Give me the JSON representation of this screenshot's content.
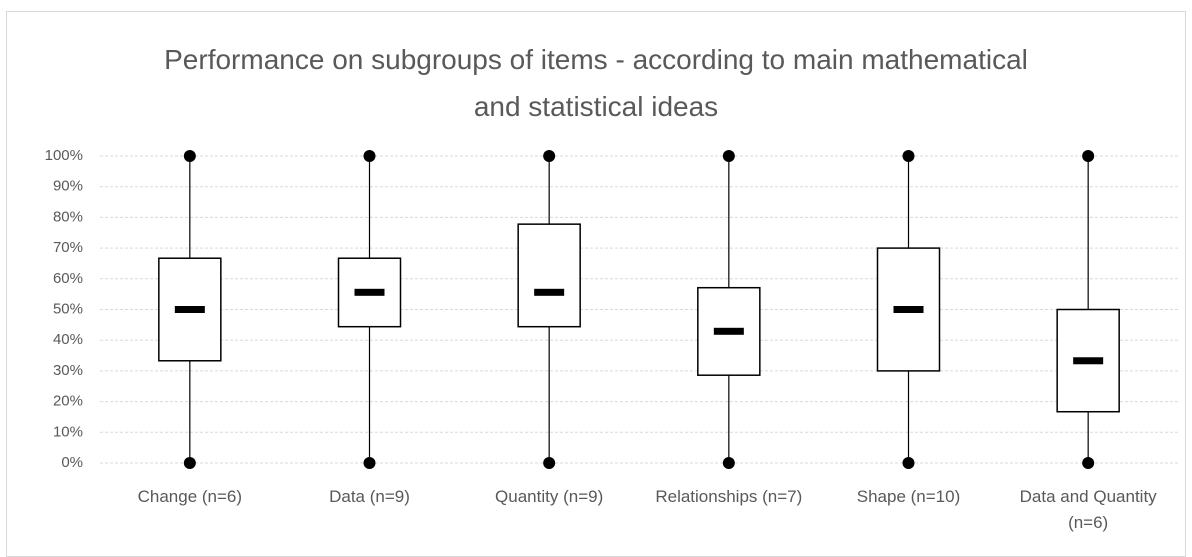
{
  "chart_data": {
    "type": "box",
    "title": "Performance on subgroups of items - according to main mathematical and statistical ideas",
    "categories": [
      "Change (n=6)",
      "Data (n=9)",
      "Quantity (n=9)",
      "Relationships (n=7)",
      "Shape (n=10)",
      "Data and Quantity (n=6)"
    ],
    "min": [
      0,
      0,
      0,
      0,
      0,
      0
    ],
    "q1": [
      33.3,
      44.4,
      44.4,
      28.6,
      30,
      16.7
    ],
    "median": [
      50,
      55.6,
      55.6,
      42.9,
      50,
      33.3
    ],
    "q3": [
      66.7,
      66.7,
      77.8,
      57.1,
      70,
      50
    ],
    "max": [
      100,
      100,
      100,
      100,
      100,
      100
    ],
    "color": "#000000",
    "ylim": [
      0,
      100
    ],
    "yticks": [
      {
        "value": 0,
        "label": "0%"
      },
      {
        "value": 10,
        "label": "10%"
      },
      {
        "value": 20,
        "label": "20%"
      },
      {
        "value": 30,
        "label": "30%"
      },
      {
        "value": 40,
        "label": "40%"
      },
      {
        "value": 50,
        "label": "50%"
      },
      {
        "value": 60,
        "label": "60%"
      },
      {
        "value": 70,
        "label": "70%"
      },
      {
        "value": 80,
        "label": "80%"
      },
      {
        "value": 90,
        "label": "90%"
      },
      {
        "value": 100,
        "label": "100%"
      }
    ],
    "grid": true
  }
}
